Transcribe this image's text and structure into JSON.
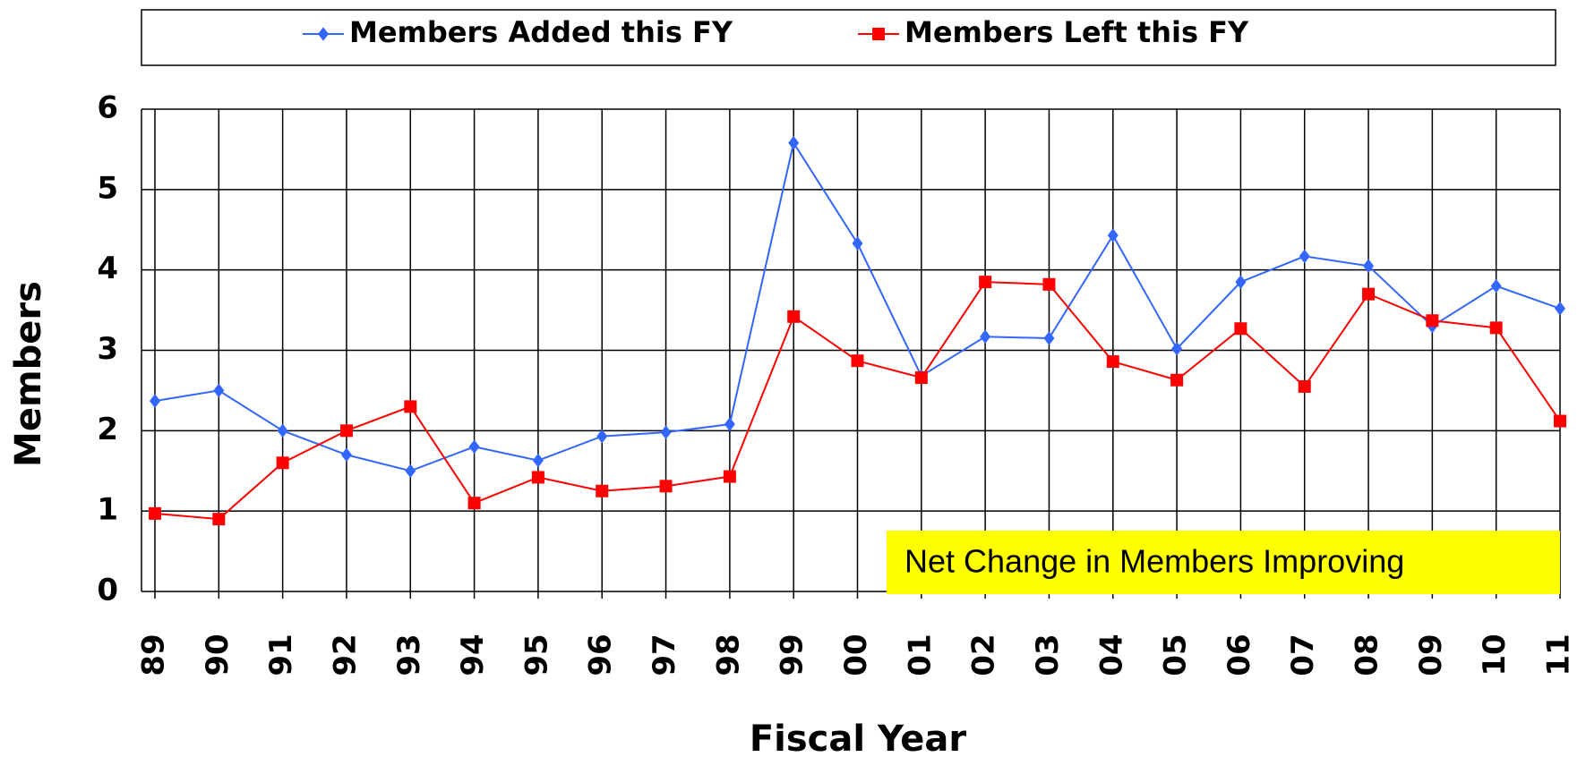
{
  "chart_data": {
    "type": "line",
    "categories": [
      "89",
      "90",
      "91",
      "92",
      "93",
      "94",
      "95",
      "96",
      "97",
      "98",
      "99",
      "00",
      "01",
      "02",
      "03",
      "04",
      "05",
      "06",
      "07",
      "08",
      "09",
      "10",
      "11"
    ],
    "series": [
      {
        "name": "Members Added this FY",
        "color": "#3366ff",
        "marker": "diamond",
        "values": [
          2.37,
          2.5,
          2.0,
          1.7,
          1.5,
          1.8,
          1.63,
          1.93,
          1.98,
          2.08,
          5.58,
          4.33,
          2.68,
          3.17,
          3.15,
          4.43,
          3.02,
          3.85,
          4.17,
          4.05,
          3.3,
          3.8,
          3.52
        ]
      },
      {
        "name": "Members Left this FY",
        "color": "#ff0000",
        "marker": "square",
        "values": [
          0.97,
          0.9,
          1.6,
          2.0,
          2.3,
          1.1,
          1.42,
          1.25,
          1.31,
          1.43,
          3.42,
          2.87,
          2.66,
          3.85,
          3.82,
          2.86,
          2.63,
          3.27,
          2.55,
          3.7,
          3.37,
          3.28,
          2.12
        ]
      }
    ],
    "x_label": "Fiscal Year",
    "y_label": "Members",
    "ylim": [
      0,
      6
    ],
    "yticks": [
      0,
      1,
      2,
      3,
      4,
      5,
      6
    ],
    "grid": true,
    "annotation": "Net Change in Members Improving"
  }
}
